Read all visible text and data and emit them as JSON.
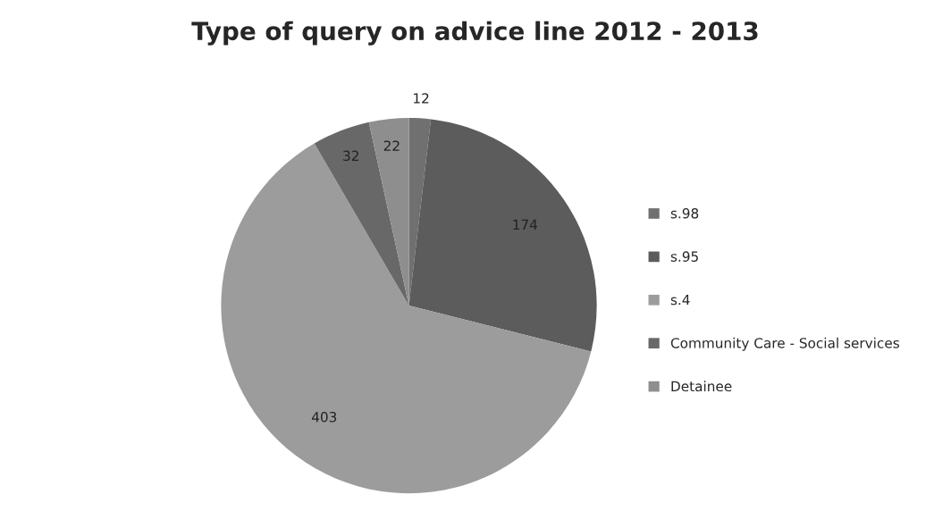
{
  "chart_data": {
    "type": "pie",
    "title": "Type of query on advice line 2012 - 2013",
    "categories": [
      "s.98",
      "s.95",
      "s.4",
      "Community Care - Social services",
      "Detainee"
    ],
    "values": [
      12,
      174,
      403,
      32,
      22
    ],
    "colors": [
      "#707070",
      "#5c5c5c",
      "#9c9c9c",
      "#686868",
      "#8e8e8e"
    ],
    "data_labels": true,
    "legend": "right"
  }
}
